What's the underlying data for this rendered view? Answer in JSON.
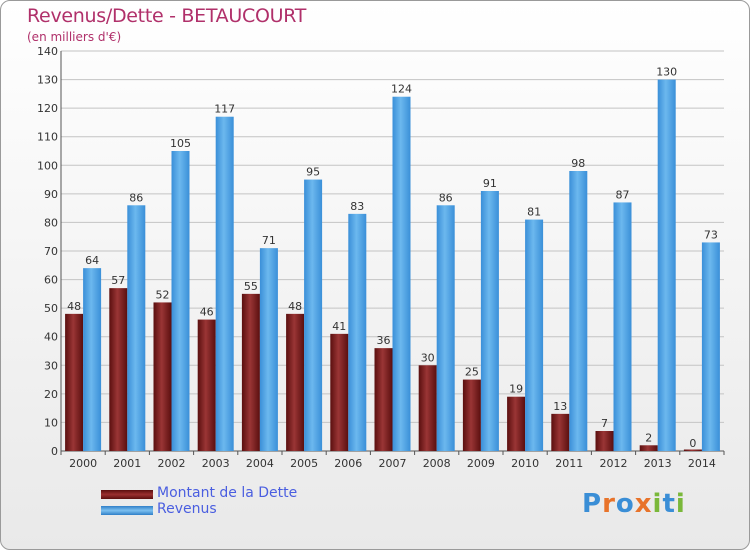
{
  "title": "Revenus/Dette - BETAUCOURT",
  "subtitle": "(en milliers d'€)",
  "logo": {
    "text": "Proxiti",
    "letters": [
      "P",
      "r",
      "o",
      "x",
      "i",
      "t",
      "i"
    ],
    "colors": [
      "#3a8ed6",
      "#e8732a",
      "#3a8ed6",
      "#e8732a",
      "#7ab83a",
      "#3a8ed6",
      "#7ab83a"
    ]
  },
  "chart_data": {
    "type": "bar",
    "categories": [
      "2000",
      "2001",
      "2002",
      "2003",
      "2004",
      "2005",
      "2006",
      "2007",
      "2008",
      "2009",
      "2010",
      "2011",
      "2012",
      "2013",
      "2014"
    ],
    "series": [
      {
        "name": "Montant de la Dette",
        "values": [
          48,
          57,
          52,
          46,
          55,
          48,
          41,
          36,
          30,
          25,
          19,
          13,
          7,
          2,
          0
        ],
        "color": "#7a1a1a"
      },
      {
        "name": "Revenus",
        "values": [
          64,
          86,
          105,
          117,
          71,
          95,
          83,
          124,
          86,
          91,
          81,
          98,
          87,
          130,
          73
        ],
        "color": "#4ea4e4"
      }
    ],
    "ylim": [
      0,
      140
    ],
    "yticks": [
      0,
      10,
      20,
      30,
      40,
      50,
      60,
      70,
      80,
      90,
      100,
      110,
      120,
      130,
      140
    ],
    "grid": true,
    "legend_position": "bottom-left"
  }
}
